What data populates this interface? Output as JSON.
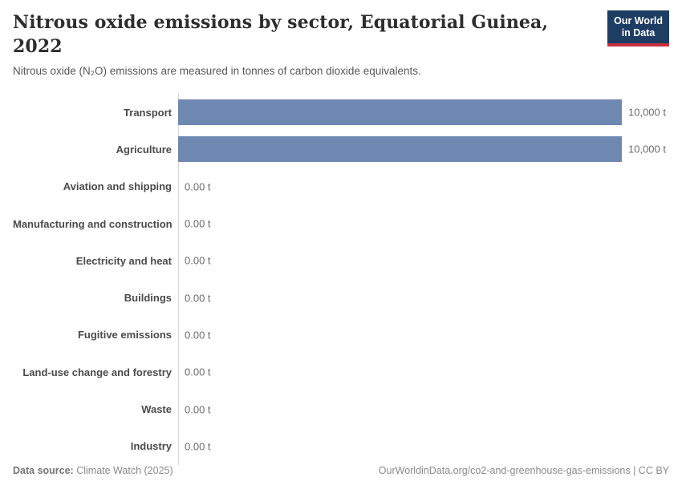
{
  "header": {
    "title": "Nitrous oxide emissions by sector, Equatorial Guinea, 2022",
    "subtitle": "Nitrous oxide (N₂O) emissions are measured in tonnes of carbon dioxide equivalents.",
    "logo": {
      "line1": "Our World",
      "line2": "in Data"
    }
  },
  "chart_data": {
    "type": "bar",
    "orientation": "horizontal",
    "title": "Nitrous oxide emissions by sector, Equatorial Guinea, 2022",
    "unit": "tonnes of CO2 equivalents",
    "categories": [
      "Transport",
      "Agriculture",
      "Aviation and shipping",
      "Manufacturing and construction",
      "Electricity and heat",
      "Buildings",
      "Fugitive emissions",
      "Land-use change and forestry",
      "Waste",
      "Industry"
    ],
    "values": [
      10000,
      10000,
      0,
      0,
      0,
      0,
      0,
      0,
      0,
      0
    ],
    "value_labels": [
      "10,000 t",
      "10,000 t",
      "0.00 t",
      "0.00 t",
      "0.00 t",
      "0.00 t",
      "0.00 t",
      "0.00 t",
      "0.00 t",
      "0.00 t"
    ],
    "xlim": [
      0,
      10000
    ],
    "grid": false,
    "legend": false,
    "bar_color": "#6e88b2"
  },
  "footer": {
    "source_label": "Data source:",
    "source_value": "Climate Watch (2025)",
    "attribution": "OurWorldinData.org/co2-and-greenhouse-gas-emissions | CC BY"
  },
  "colors": {
    "bar": "#6e88b2",
    "logo_bg": "#1d3d63",
    "logo_underline": "#c7313f",
    "axis": "#d4d4d4"
  }
}
